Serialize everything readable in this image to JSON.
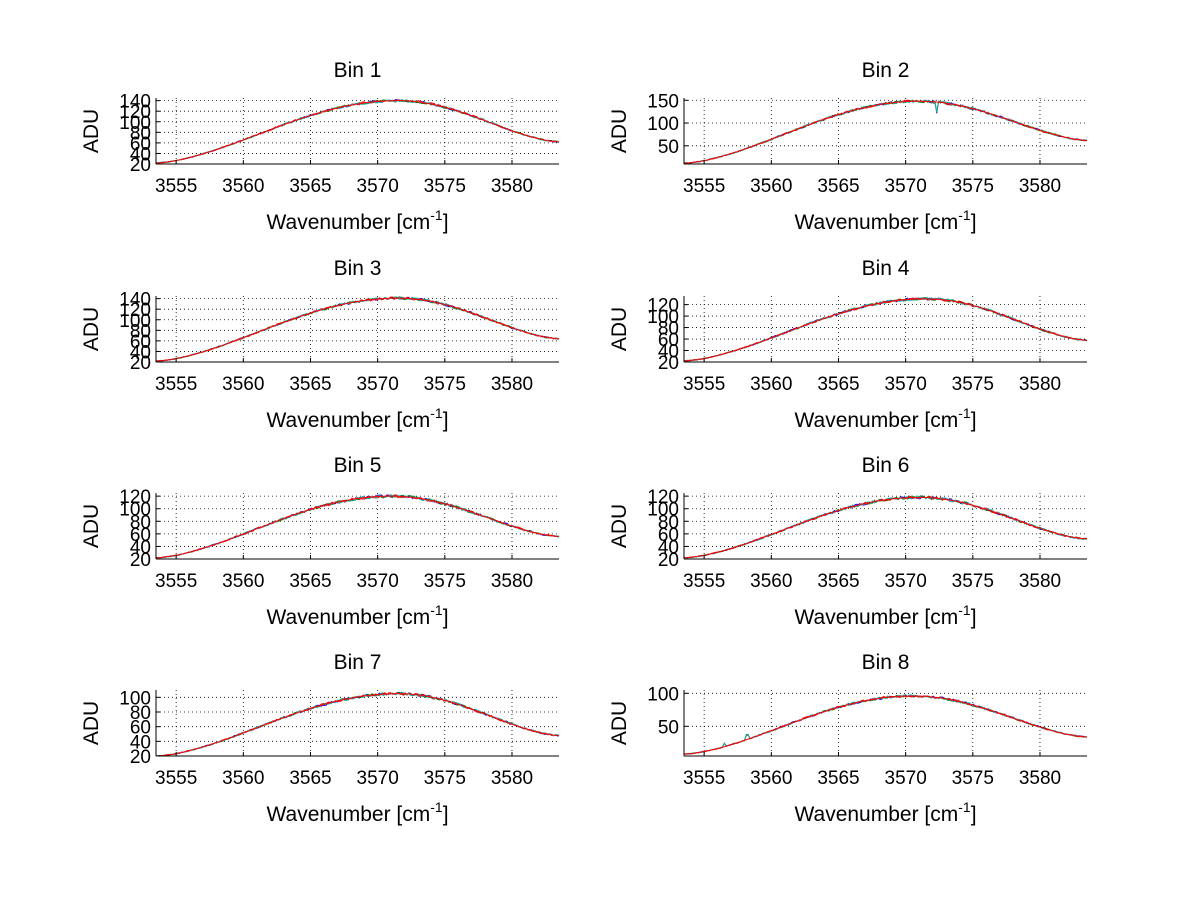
{
  "figure": {
    "background": "#ffffff",
    "grid": true,
    "grid_style": "dotted",
    "series_colors": [
      "#0000ff",
      "#008000",
      "#ff0000",
      "#00bfbf",
      "#bf00bf",
      "#bfbf00",
      "#000000"
    ]
  },
  "chart_data": [
    {
      "type": "line",
      "title": "Bin 1",
      "xlabel": "Wavenumber [cm",
      "xlabel_superscript": "-1",
      "xlabel_suffix": "]",
      "ylabel": "ADU",
      "xlim": [
        3553.5,
        3583.5
      ],
      "ylim": [
        20,
        145
      ],
      "xticks": [
        3555,
        3560,
        3565,
        3570,
        3575,
        3580
      ],
      "yticks": [
        20,
        40,
        60,
        80,
        100,
        120,
        140
      ],
      "curve": {
        "peak_x": 3571.5,
        "peak_y": 140,
        "start_y": 22,
        "end_y": 62,
        "noise": 2.5,
        "spikes": []
      }
    },
    {
      "type": "line",
      "title": "Bin 2",
      "xlabel": "Wavenumber [cm",
      "xlabel_superscript": "-1",
      "xlabel_suffix": "]",
      "ylabel": "ADU",
      "xlim": [
        3553.5,
        3583.5
      ],
      "ylim": [
        10,
        155
      ],
      "xticks": [
        3555,
        3560,
        3565,
        3570,
        3575,
        3580
      ],
      "yticks": [
        50,
        100,
        150
      ],
      "curve": {
        "peak_x": 3571.0,
        "peak_y": 148,
        "start_y": 12,
        "end_y": 62,
        "noise": 3.0,
        "spikes": [
          {
            "x": 3572.3,
            "dy": -22
          }
        ]
      }
    },
    {
      "type": "line",
      "title": "Bin 3",
      "xlabel": "Wavenumber [cm",
      "xlabel_superscript": "-1",
      "xlabel_suffix": "]",
      "ylabel": "ADU",
      "xlim": [
        3553.5,
        3583.5
      ],
      "ylim": [
        20,
        145
      ],
      "xticks": [
        3555,
        3560,
        3565,
        3570,
        3575,
        3580
      ],
      "yticks": [
        20,
        40,
        60,
        80,
        100,
        120,
        140
      ],
      "curve": {
        "peak_x": 3571.5,
        "peak_y": 141,
        "start_y": 22,
        "end_y": 64,
        "noise": 2.5,
        "spikes": []
      }
    },
    {
      "type": "line",
      "title": "Bin 4",
      "xlabel": "Wavenumber [cm",
      "xlabel_superscript": "-1",
      "xlabel_suffix": "]",
      "ylabel": "ADU",
      "xlim": [
        3553.5,
        3583.5
      ],
      "ylim": [
        20,
        135
      ],
      "xticks": [
        3555,
        3560,
        3565,
        3570,
        3575,
        3580
      ],
      "yticks": [
        20,
        40,
        60,
        80,
        100,
        120
      ],
      "curve": {
        "peak_x": 3571.5,
        "peak_y": 130,
        "start_y": 22,
        "end_y": 58,
        "noise": 2.5,
        "spikes": []
      }
    },
    {
      "type": "line",
      "title": "Bin 5",
      "xlabel": "Wavenumber [cm",
      "xlabel_superscript": "-1",
      "xlabel_suffix": "]",
      "ylabel": "ADU",
      "xlim": [
        3553.5,
        3583.5
      ],
      "ylim": [
        20,
        125
      ],
      "xticks": [
        3555,
        3560,
        3565,
        3570,
        3575,
        3580
      ],
      "yticks": [
        20,
        40,
        60,
        80,
        100,
        120
      ],
      "curve": {
        "peak_x": 3571.0,
        "peak_y": 120,
        "start_y": 22,
        "end_y": 56,
        "noise": 2.5,
        "spikes": []
      }
    },
    {
      "type": "line",
      "title": "Bin 6",
      "xlabel": "Wavenumber [cm",
      "xlabel_superscript": "-1",
      "xlabel_suffix": "]",
      "ylabel": "ADU",
      "xlim": [
        3553.5,
        3583.5
      ],
      "ylim": [
        20,
        125
      ],
      "xticks": [
        3555,
        3560,
        3565,
        3570,
        3575,
        3580
      ],
      "yticks": [
        20,
        40,
        60,
        80,
        100,
        120
      ],
      "curve": {
        "peak_x": 3571.0,
        "peak_y": 118,
        "start_y": 22,
        "end_y": 52,
        "noise": 2.5,
        "spikes": []
      }
    },
    {
      "type": "line",
      "title": "Bin 7",
      "xlabel": "Wavenumber [cm",
      "xlabel_superscript": "-1",
      "xlabel_suffix": "]",
      "ylabel": "ADU",
      "xlim": [
        3553.5,
        3583.5
      ],
      "ylim": [
        20,
        110
      ],
      "xticks": [
        3555,
        3560,
        3565,
        3570,
        3575,
        3580
      ],
      "yticks": [
        20,
        40,
        60,
        80,
        100
      ],
      "curve": {
        "peak_x": 3571.5,
        "peak_y": 105,
        "start_y": 20,
        "end_y": 48,
        "noise": 2.0,
        "spikes": []
      }
    },
    {
      "type": "line",
      "title": "Bin 8",
      "xlabel": "Wavenumber [cm",
      "xlabel_superscript": "-1",
      "xlabel_suffix": "]",
      "ylabel": "ADU",
      "xlim": [
        3553.5,
        3583.5
      ],
      "ylim": [
        5,
        105
      ],
      "xticks": [
        3555,
        3560,
        3565,
        3570,
        3575,
        3580
      ],
      "yticks": [
        50,
        100
      ],
      "curve": {
        "peak_x": 3570.5,
        "peak_y": 96,
        "start_y": 8,
        "end_y": 34,
        "noise": 2.0,
        "spikes": [
          {
            "x": 3556.5,
            "dy": 5
          },
          {
            "x": 3558.2,
            "dy": 7
          }
        ]
      }
    }
  ]
}
